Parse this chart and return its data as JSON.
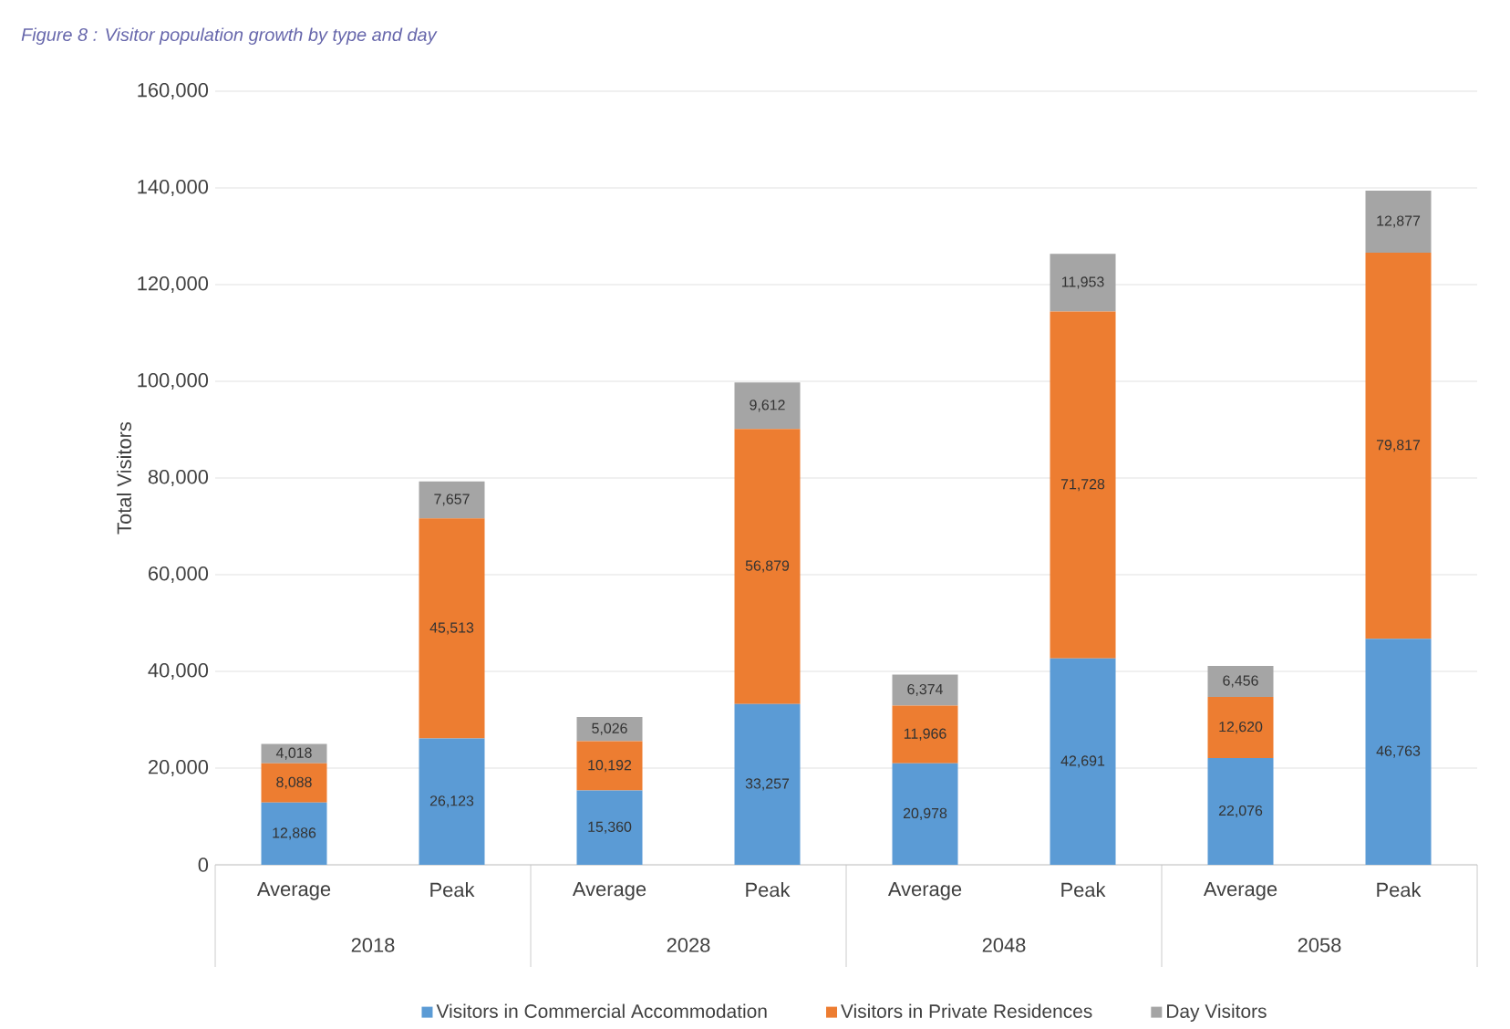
{
  "chart_data": {
    "type": "bar",
    "stacked": true,
    "title": "Figure 8 : Visitor population growth by type and day",
    "ylabel": "Total Visitors",
    "categories": [
      "Average",
      "Peak",
      "Average",
      "Peak",
      "Average",
      "Peak",
      "Average",
      "Peak"
    ],
    "annotations": [
      "2018",
      "2028",
      "2048",
      "2058"
    ],
    "series": [
      {
        "name": "Visitors in Commercial Accommodation",
        "color": "#5b9bd5",
        "values": [
          12886,
          26123,
          15360,
          33257,
          20978,
          42691,
          22076,
          46763
        ],
        "value_labels": [
          "12,886",
          "26,123",
          "15,360",
          "33,257",
          "20,978",
          "42,691",
          "22,076",
          "46,763"
        ]
      },
      {
        "name": "Visitors in Private Residences",
        "color": "#ed7d31",
        "values": [
          8088,
          45513,
          10192,
          56879,
          11966,
          71728,
          12620,
          79817
        ],
        "value_labels": [
          "8,088",
          "45,513",
          "10,192",
          "56,879",
          "11,966",
          "71,728",
          "12,620",
          "79,817"
        ]
      },
      {
        "name": "Day Visitors",
        "color": "#a5a5a5",
        "values": [
          4018,
          7657,
          5026,
          9612,
          6374,
          11953,
          6456,
          12877
        ],
        "value_labels": [
          "4,018",
          "7,657",
          "5,026",
          "9,612",
          "6,374",
          "11,953",
          "6,456",
          "12,877"
        ]
      }
    ],
    "ylim": [
      0,
      160000
    ],
    "yticks": [
      0,
      {
        "value": 20000,
        "label": "20,000"
      },
      {
        "value": 40000,
        "label": "40,000"
      },
      {
        "value": 60000,
        "label": "60,000"
      },
      {
        "value": 80000,
        "label": "80,000"
      },
      {
        "value": 100000,
        "label": "100,000"
      },
      {
        "value": 120000,
        "label": "120,000"
      },
      {
        "value": 140000,
        "label": "140,000"
      },
      {
        "value": 160000,
        "label": "160,000"
      }
    ],
    "grid": "y",
    "legend": "bottom"
  }
}
